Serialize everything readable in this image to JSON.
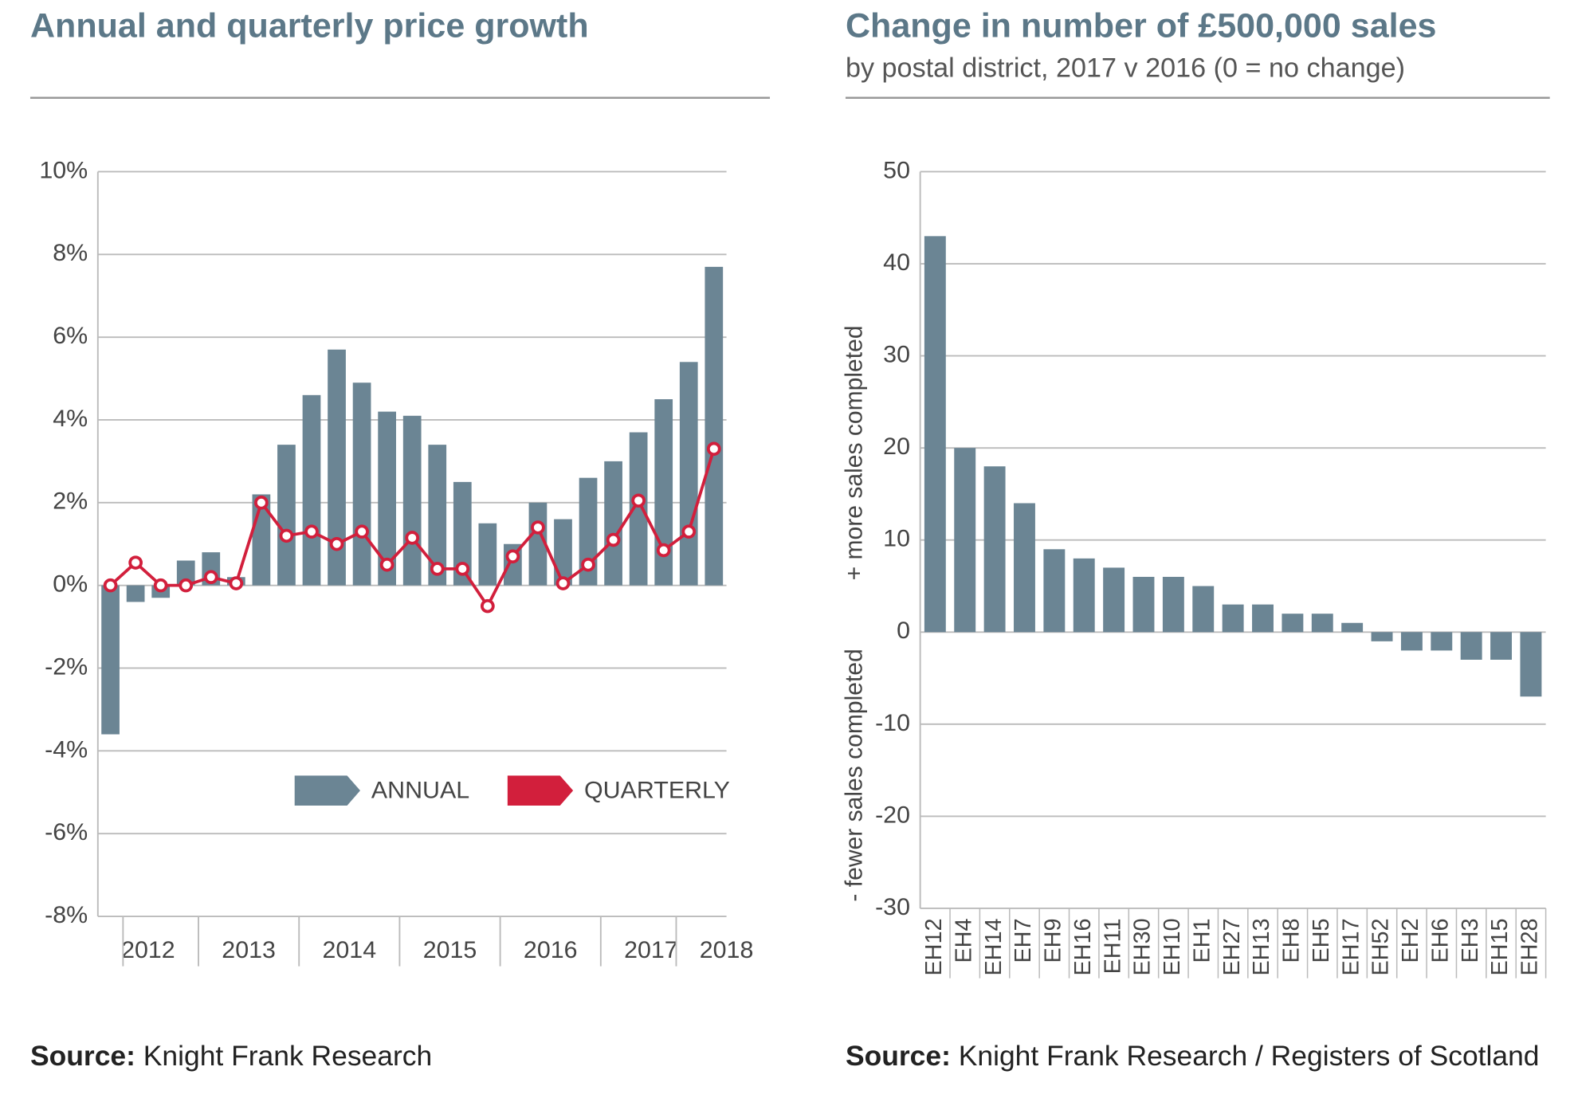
{
  "chart_data": [
    {
      "type": "combo",
      "title": "Annual and quarterly price growth",
      "source_label": "Source:",
      "source_text": "Knight Frank Research",
      "categories": [
        null,
        "2012",
        null,
        null,
        null,
        "2013",
        null,
        null,
        null,
        "2014",
        null,
        null,
        null,
        "2015",
        null,
        null,
        null,
        "2016",
        null,
        null,
        null,
        "2017",
        null,
        null,
        "2018"
      ],
      "series": [
        {
          "name": "ANNUAL",
          "type": "bar",
          "color": "#6b8594",
          "values": [
            -3.6,
            -0.4,
            -0.3,
            0.6,
            0.8,
            0.2,
            2.2,
            3.4,
            4.6,
            5.7,
            4.9,
            4.2,
            4.1,
            3.4,
            2.5,
            1.5,
            1.0,
            2.0,
            1.6,
            2.6,
            3.0,
            3.7,
            4.5,
            5.4,
            7.7
          ]
        },
        {
          "name": "QUARTERLY",
          "type": "line",
          "color": "#d21f3c",
          "values": [
            0.0,
            0.55,
            0.0,
            0.0,
            0.2,
            0.05,
            2.0,
            1.2,
            1.3,
            1.0,
            1.3,
            0.5,
            1.15,
            0.4,
            0.4,
            -0.5,
            0.7,
            1.4,
            0.05,
            0.5,
            1.1,
            2.05,
            0.85,
            1.3,
            3.3
          ]
        }
      ],
      "ylim": [
        -8,
        10
      ],
      "yticks": [
        {
          "value": -8,
          "label": "-8%"
        },
        {
          "value": -6,
          "label": "-6%"
        },
        {
          "value": -4,
          "label": "-4%"
        },
        {
          "value": -2,
          "label": "-2%"
        },
        {
          "value": 0,
          "label": "0%"
        },
        {
          "value": 2,
          "label": "2%"
        },
        {
          "value": 4,
          "label": "4%"
        },
        {
          "value": 6,
          "label": "6%"
        },
        {
          "value": 8,
          "label": "8%"
        },
        {
          "value": 10,
          "label": "10%"
        }
      ],
      "grid": true,
      "legend": "lower-right"
    },
    {
      "type": "bar",
      "title": "Change in number of £500,000 sales",
      "subtitle": "by postal district, 2017 v 2016 (0 = no change)",
      "source_label": "Source:",
      "source_text": "Knight Frank Research / Registers of Scotland",
      "y_label_upper": "+ more sales completed",
      "y_label_lower": "- fewer sales completed",
      "categories": [
        "EH12",
        "EH4",
        "EH14",
        "EH7",
        "EH9",
        "EH16",
        "EH11",
        "EH30",
        "EH10",
        "EH1",
        "EH27",
        "EH13",
        "EH8",
        "EH5",
        "EH17",
        "EH52",
        "EH2",
        "EH6",
        "EH3",
        "EH15",
        "EH28"
      ],
      "values": [
        43,
        20,
        18,
        14,
        9,
        8,
        7,
        6,
        6,
        5,
        3,
        3,
        2,
        2,
        1,
        -1,
        -2,
        -2,
        -3,
        -3,
        -7
      ],
      "color": "#6b8594",
      "ylim": [
        -30,
        50
      ],
      "yticks": [
        -30,
        -20,
        -10,
        0,
        10,
        20,
        30,
        40,
        50
      ],
      "grid": true
    }
  ]
}
